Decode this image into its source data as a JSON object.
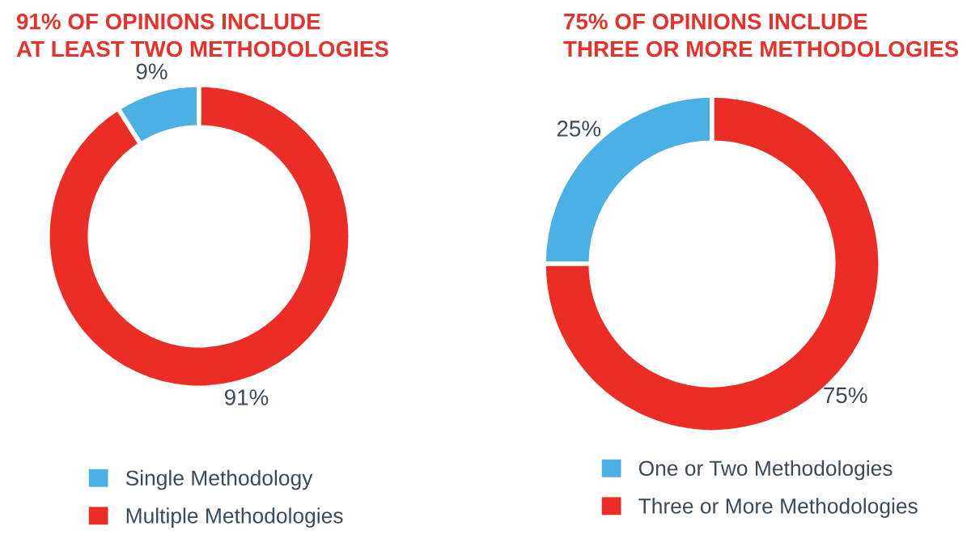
{
  "chart_data": [
    {
      "type": "donut",
      "title": "91% OF OPINIONS INCLUDE\nAT LEAST TWO METHODOLOGIES",
      "categories": [
        "Single Methodology",
        "Multiple Methodologies"
      ],
      "values": [
        9,
        91
      ],
      "colors": [
        "#4bb0e3",
        "#ec2d26"
      ],
      "value_labels": [
        "9%",
        "91%"
      ],
      "legend": "bottom"
    },
    {
      "type": "donut",
      "title": "75% OF OPINIONS INCLUDE\nTHREE OR MORE METHODOLOGIES",
      "categories": [
        "One or Two Methodologies",
        "Three or More Methodologies"
      ],
      "values": [
        25,
        75
      ],
      "colors": [
        "#4bb0e3",
        "#ec2d26"
      ],
      "value_labels": [
        "25%",
        "75%"
      ],
      "legend": "bottom"
    }
  ]
}
